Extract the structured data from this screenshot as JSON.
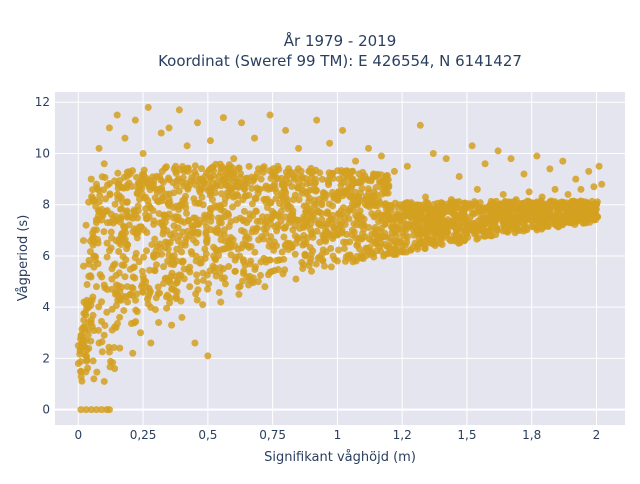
{
  "chart_data": {
    "type": "scatter",
    "title_line1": "År 1979 - 2019",
    "title_line2": "Koordinat (Sweref 99 TM): E 426554, N 6141427",
    "xlabel": "Signifikant våghöjd (m)",
    "ylabel": "Vågperiod (s)",
    "xlim": [
      -0.09,
      2.11
    ],
    "ylim": [
      -0.6,
      12.4
    ],
    "grid": true,
    "legend": "none",
    "x_ticks": [
      {
        "value": 0,
        "label": "0"
      },
      {
        "value": 0.25,
        "label": "0,25"
      },
      {
        "value": 0.5,
        "label": "0,5"
      },
      {
        "value": 0.75,
        "label": "0,75"
      },
      {
        "value": 1,
        "label": "1"
      },
      {
        "value": 1.25,
        "label": "1,2"
      },
      {
        "value": 1.5,
        "label": "1,5"
      },
      {
        "value": 1.75,
        "label": "1,8"
      },
      {
        "value": 2,
        "label": "2"
      }
    ],
    "y_ticks": [
      {
        "value": 0,
        "label": "0"
      },
      {
        "value": 2,
        "label": "2"
      },
      {
        "value": 4,
        "label": "4"
      },
      {
        "value": 6,
        "label": "6"
      },
      {
        "value": 8,
        "label": "8"
      },
      {
        "value": 10,
        "label": "10"
      },
      {
        "value": 12,
        "label": "12"
      }
    ],
    "marker_color": "#D4A020",
    "background_color": "#E5E5EF",
    "series": [
      {
        "points": [
          [
            0.01,
            0
          ],
          [
            0.03,
            0
          ],
          [
            0.05,
            0
          ],
          [
            0.07,
            0
          ],
          [
            0.09,
            0
          ],
          [
            0.11,
            0
          ],
          [
            0.12,
            0
          ],
          [
            0.0,
            1.8
          ],
          [
            0.0,
            2.5
          ],
          [
            0.01,
            1.5
          ],
          [
            0.02,
            3.2
          ],
          [
            0.02,
            5.6
          ],
          [
            0.02,
            6.6
          ],
          [
            0.03,
            2.1
          ],
          [
            0.03,
            4.1
          ],
          [
            0.03,
            7.2
          ],
          [
            0.04,
            8.1
          ],
          [
            0.04,
            5.2
          ],
          [
            0.05,
            3.5
          ],
          [
            0.05,
            9.0
          ],
          [
            0.06,
            1.2
          ],
          [
            0.06,
            6.0
          ],
          [
            0.07,
            4.8
          ],
          [
            0.07,
            8.8
          ],
          [
            0.08,
            2.6
          ],
          [
            0.08,
            10.2
          ],
          [
            0.09,
            7.4
          ],
          [
            0.1,
            1.1
          ],
          [
            0.1,
            9.6
          ],
          [
            0.11,
            3.8
          ],
          [
            0.12,
            11.0
          ],
          [
            0.13,
            5.5
          ],
          [
            0.14,
            1.6
          ],
          [
            0.15,
            8.4
          ],
          [
            0.15,
            11.5
          ],
          [
            0.16,
            2.4
          ],
          [
            0.17,
            6.8
          ],
          [
            0.18,
            10.6
          ],
          [
            0.19,
            4.2
          ],
          [
            0.2,
            9.2
          ],
          [
            0.21,
            2.2
          ],
          [
            0.22,
            11.3
          ],
          [
            0.23,
            7.0
          ],
          [
            0.24,
            3.0
          ],
          [
            0.25,
            10.0
          ],
          [
            0.26,
            5.0
          ],
          [
            0.27,
            11.8
          ],
          [
            0.28,
            2.6
          ],
          [
            0.29,
            8.8
          ],
          [
            0.3,
            6.2
          ],
          [
            0.31,
            3.4
          ],
          [
            0.32,
            10.8
          ],
          [
            0.33,
            7.6
          ],
          [
            0.34,
            4.4
          ],
          [
            0.35,
            11.0
          ],
          [
            0.36,
            3.3
          ],
          [
            0.37,
            9.4
          ],
          [
            0.38,
            5.8
          ],
          [
            0.39,
            11.7
          ],
          [
            0.4,
            3.6
          ],
          [
            0.41,
            8.2
          ],
          [
            0.42,
            10.3
          ],
          [
            0.43,
            4.8
          ],
          [
            0.44,
            6.9
          ],
          [
            0.45,
            2.6
          ],
          [
            0.46,
            11.2
          ],
          [
            0.47,
            9.0
          ],
          [
            0.48,
            4.1
          ],
          [
            0.49,
            7.5
          ],
          [
            0.5,
            2.1
          ],
          [
            0.51,
            10.5
          ],
          [
            0.52,
            5.6
          ],
          [
            0.53,
            8.7
          ],
          [
            0.55,
            4.2
          ],
          [
            0.56,
            11.4
          ],
          [
            0.58,
            6.6
          ],
          [
            0.6,
            9.8
          ],
          [
            0.62,
            4.5
          ],
          [
            0.63,
            11.2
          ],
          [
            0.65,
            7.3
          ],
          [
            0.67,
            5.0
          ],
          [
            0.68,
            10.6
          ],
          [
            0.7,
            8.6
          ],
          [
            0.72,
            4.8
          ],
          [
            0.74,
            11.5
          ],
          [
            0.75,
            6.4
          ],
          [
            0.77,
            9.5
          ],
          [
            0.79,
            5.3
          ],
          [
            0.8,
            10.9
          ],
          [
            0.82,
            7.9
          ],
          [
            0.84,
            5.1
          ],
          [
            0.85,
            10.2
          ],
          [
            0.87,
            6.8
          ],
          [
            0.89,
            9.3
          ],
          [
            0.9,
            5.4
          ],
          [
            0.92,
            11.3
          ],
          [
            0.94,
            8.0
          ],
          [
            0.95,
            5.6
          ],
          [
            0.97,
            10.4
          ],
          [
            0.99,
            7.1
          ],
          [
            1.0,
            5.8
          ],
          [
            1.02,
            10.9
          ],
          [
            1.04,
            8.6
          ],
          [
            1.05,
            6.0
          ],
          [
            1.07,
            9.7
          ],
          [
            1.09,
            7.4
          ],
          [
            1.1,
            5.9
          ],
          [
            1.12,
            10.2
          ],
          [
            1.14,
            8.1
          ],
          [
            1.15,
            6.2
          ],
          [
            1.17,
            9.9
          ],
          [
            1.19,
            7.6
          ],
          [
            1.2,
            6.3
          ],
          [
            1.22,
            9.3
          ],
          [
            1.24,
            8.0
          ],
          [
            1.25,
            6.4
          ],
          [
            1.27,
            9.5
          ],
          [
            1.29,
            7.2
          ],
          [
            1.3,
            6.5
          ],
          [
            1.32,
            11.1
          ],
          [
            1.34,
            8.3
          ],
          [
            1.35,
            6.6
          ],
          [
            1.37,
            10.0
          ],
          [
            1.39,
            7.8
          ],
          [
            1.4,
            6.7
          ],
          [
            1.42,
            9.8
          ],
          [
            1.44,
            8.2
          ],
          [
            1.45,
            6.8
          ],
          [
            1.47,
            9.1
          ],
          [
            1.49,
            7.5
          ],
          [
            1.5,
            6.9
          ],
          [
            1.52,
            10.3
          ],
          [
            1.54,
            8.6
          ],
          [
            1.55,
            7.0
          ],
          [
            1.57,
            9.6
          ],
          [
            1.59,
            8.0
          ],
          [
            1.6,
            7.1
          ],
          [
            1.62,
            10.1
          ],
          [
            1.64,
            8.4
          ],
          [
            1.65,
            7.2
          ],
          [
            1.67,
            9.8
          ],
          [
            1.69,
            8.2
          ],
          [
            1.7,
            7.3
          ],
          [
            1.72,
            9.2
          ],
          [
            1.74,
            8.5
          ],
          [
            1.75,
            7.4
          ],
          [
            1.77,
            9.9
          ],
          [
            1.79,
            8.3
          ],
          [
            1.8,
            7.5
          ],
          [
            1.82,
            9.4
          ],
          [
            1.84,
            8.6
          ],
          [
            1.85,
            7.6
          ],
          [
            1.87,
            9.7
          ],
          [
            1.89,
            8.4
          ],
          [
            1.9,
            7.7
          ],
          [
            1.92,
            9.0
          ],
          [
            1.94,
            8.6
          ],
          [
            1.95,
            7.8
          ],
          [
            1.97,
            9.3
          ],
          [
            1.99,
            8.7
          ],
          [
            2.0,
            8.0
          ],
          [
            2.01,
            9.5
          ],
          [
            2.02,
            8.8
          ]
        ]
      }
    ]
  }
}
